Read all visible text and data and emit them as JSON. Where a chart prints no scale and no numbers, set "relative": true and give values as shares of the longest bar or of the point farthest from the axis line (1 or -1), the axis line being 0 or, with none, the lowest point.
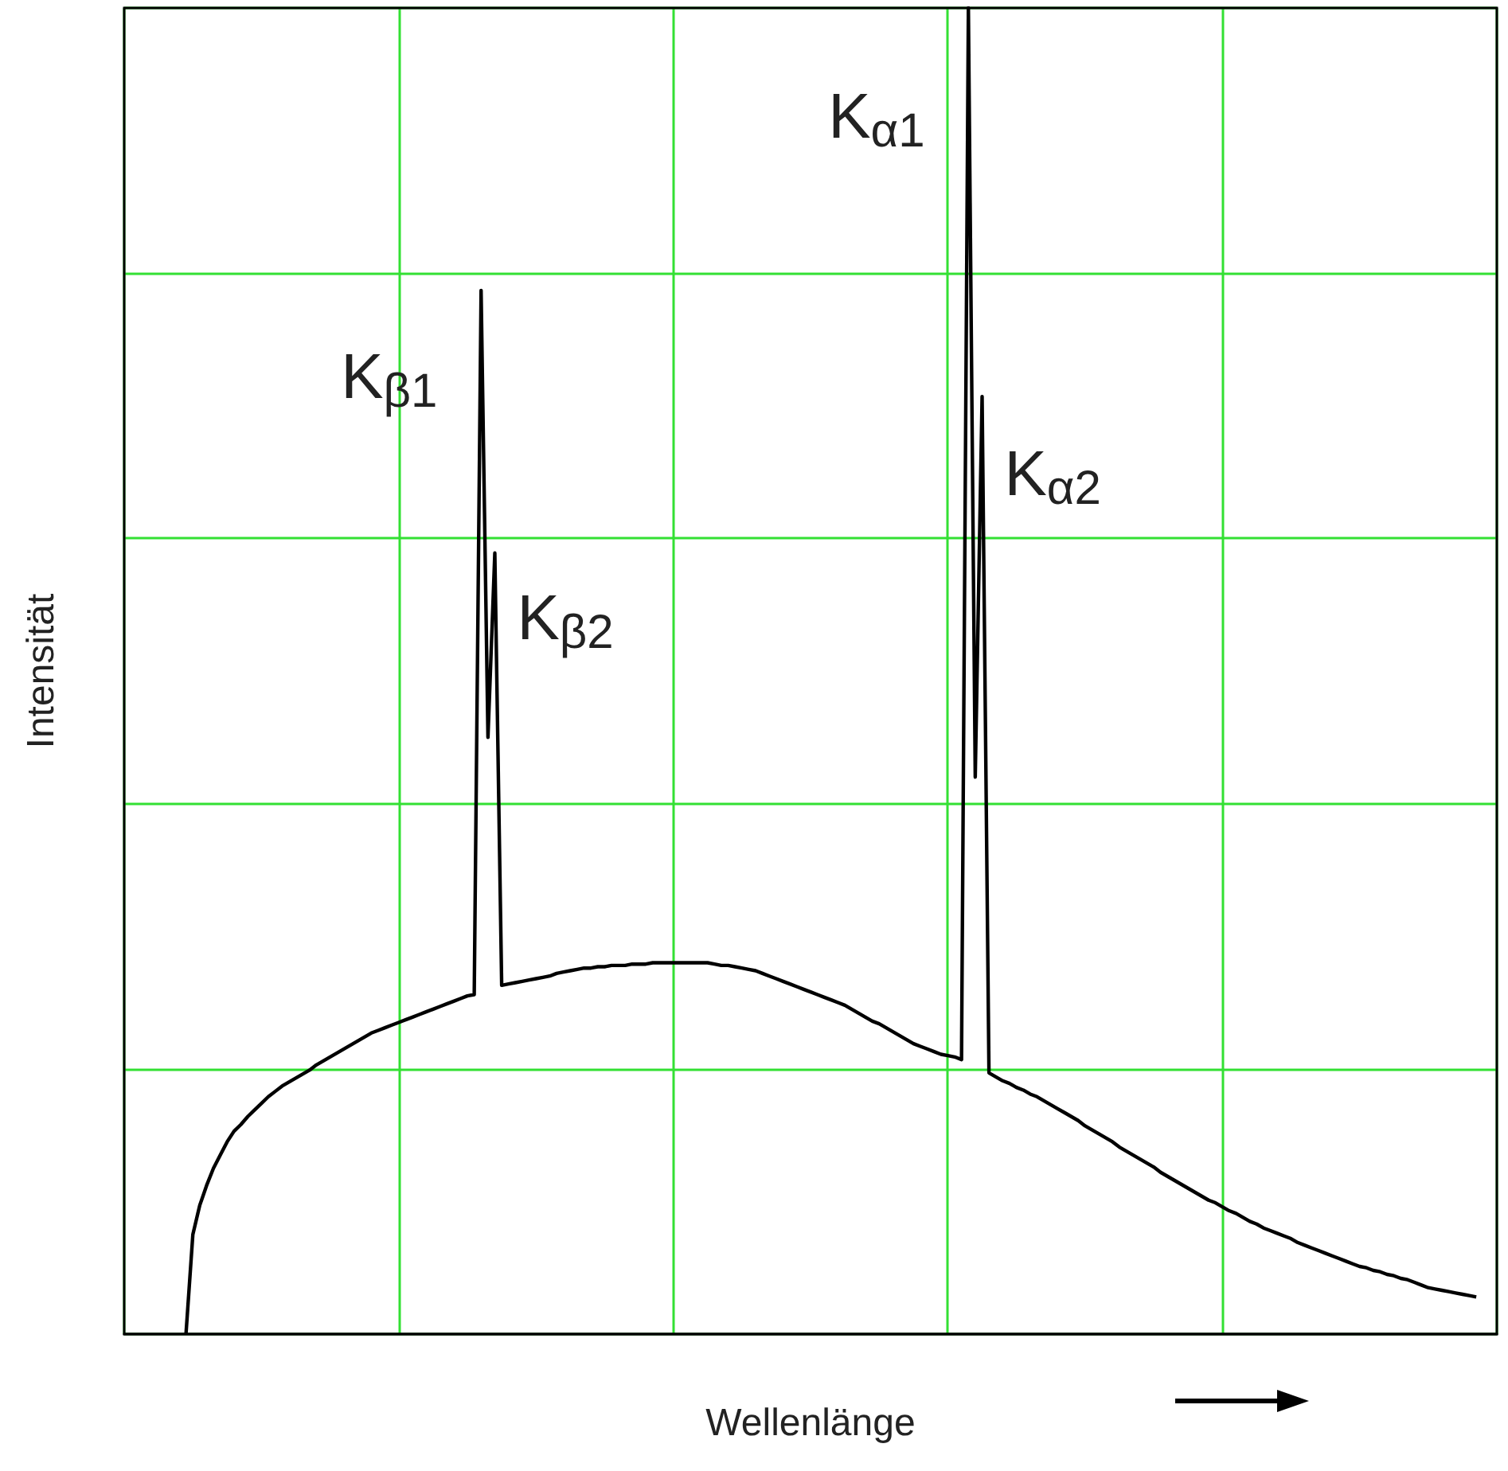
{
  "chart_data": {
    "type": "line",
    "relative": true,
    "xlabel": "Wellenlänge",
    "ylabel": "Intensität",
    "grid": true,
    "categories": [
      null,
      null,
      null,
      null,
      null,
      null,
      null,
      null,
      null,
      null,
      null,
      null,
      null,
      null,
      null,
      null,
      null,
      null,
      null,
      null,
      null,
      null,
      null,
      null,
      null,
      null,
      null,
      null,
      null,
      null,
      null,
      null,
      null,
      null,
      null,
      null,
      null,
      null,
      null,
      null,
      null,
      null,
      null,
      null,
      null,
      null,
      null,
      null,
      null,
      null,
      null,
      null,
      null,
      null,
      null,
      null,
      null,
      null,
      null,
      null,
      null,
      null,
      null,
      null,
      null,
      null,
      null,
      null,
      null,
      null,
      null,
      null,
      null,
      null,
      null,
      null,
      null,
      null,
      null,
      null,
      null,
      null,
      null,
      null,
      null,
      null,
      null,
      null,
      null,
      null,
      null,
      null,
      null,
      null,
      null,
      null,
      null,
      null,
      null,
      null,
      null,
      null,
      null,
      null,
      null,
      null,
      null,
      null,
      null,
      null,
      null,
      null,
      null,
      null,
      null,
      null,
      null,
      null,
      null,
      null,
      null,
      null,
      null,
      null,
      null,
      null,
      null,
      null,
      null,
      null,
      null,
      null,
      null,
      null,
      null,
      null,
      null,
      null,
      null,
      null,
      null,
      null,
      null,
      null,
      null,
      null,
      null,
      null,
      null,
      null,
      null,
      null,
      null,
      null,
      null,
      null,
      null,
      null,
      null,
      null,
      null,
      null,
      null,
      null,
      null,
      null,
      null,
      null,
      null,
      null,
      null,
      null,
      null,
      null,
      null,
      null,
      null,
      null,
      null,
      null,
      null,
      null,
      null,
      null,
      null,
      null,
      null,
      null,
      null,
      null,
      null,
      null,
      null,
      null,
      null,
      null,
      null,
      null,
      null,
      null,
      null
    ],
    "series": [
      {
        "color": "#000000",
        "values": [
          null,
          null,
          null,
          null,
          null,
          null,
          null,
          null,
          null,
          0,
          0.075,
          0.097,
          0.112,
          0.125,
          0.135,
          0.145,
          0.153,
          0.158,
          0.164,
          0.169,
          0.174,
          0.179,
          0.183,
          0.187,
          0.19,
          0.193,
          0.196,
          0.199,
          0.203,
          0.206,
          0.209,
          0.212,
          0.215,
          0.218,
          0.221,
          0.224,
          0.227,
          0.229,
          0.231,
          0.233,
          0.235,
          0.237,
          0.239,
          0.241,
          0.243,
          0.245,
          0.247,
          0.249,
          0.251,
          0.253,
          0.255,
          0.256,
          0.787,
          0.45,
          0.589,
          0.263,
          0.264,
          0.265,
          0.266,
          0.267,
          0.268,
          0.269,
          0.27,
          0.272,
          0.273,
          0.274,
          0.275,
          0.276,
          0.276,
          0.277,
          0.277,
          0.278,
          0.278,
          0.278,
          0.279,
          0.279,
          0.279,
          0.28,
          0.28,
          0.28,
          0.28,
          0.28,
          0.28,
          0.28,
          0.28,
          0.28,
          0.279,
          0.278,
          0.278,
          0.277,
          0.276,
          0.275,
          0.274,
          0.272,
          0.27,
          0.268,
          0.266,
          0.264,
          0.262,
          0.26,
          0.258,
          0.256,
          0.254,
          0.252,
          0.25,
          0.248,
          0.245,
          0.242,
          0.239,
          0.236,
          0.234,
          0.231,
          0.228,
          0.225,
          0.222,
          0.219,
          0.217,
          0.215,
          0.213,
          0.211,
          0.21,
          0.209,
          0.207,
          1.0,
          0.42,
          0.707,
          0.197,
          0.194,
          0.191,
          0.189,
          0.186,
          0.184,
          0.181,
          0.179,
          0.176,
          0.173,
          0.17,
          0.167,
          0.164,
          0.161,
          0.157,
          0.154,
          0.151,
          0.148,
          0.145,
          0.141,
          0.138,
          0.135,
          0.132,
          0.129,
          0.126,
          0.122,
          0.119,
          0.116,
          0.113,
          0.11,
          0.107,
          0.104,
          0.101,
          0.099,
          0.096,
          0.093,
          0.091,
          0.088,
          0.085,
          0.083,
          0.08,
          0.078,
          0.076,
          0.074,
          0.072,
          0.069,
          0.067,
          0.065,
          0.063,
          0.061,
          0.059,
          0.057,
          0.055,
          0.053,
          0.051,
          0.05,
          0.048,
          0.047,
          0.045,
          0.044,
          0.042,
          0.041,
          0.039,
          0.037,
          0.035,
          0.034,
          0.033,
          0.032,
          0.031,
          0.03,
          0.029,
          0.028,
          null,
          null,
          null
        ]
      }
    ],
    "annotations": [
      "K$_{β1}$",
      "K$_{β2}$",
      "K$_{α1}$",
      "K$_{α2}$"
    ]
  }
}
